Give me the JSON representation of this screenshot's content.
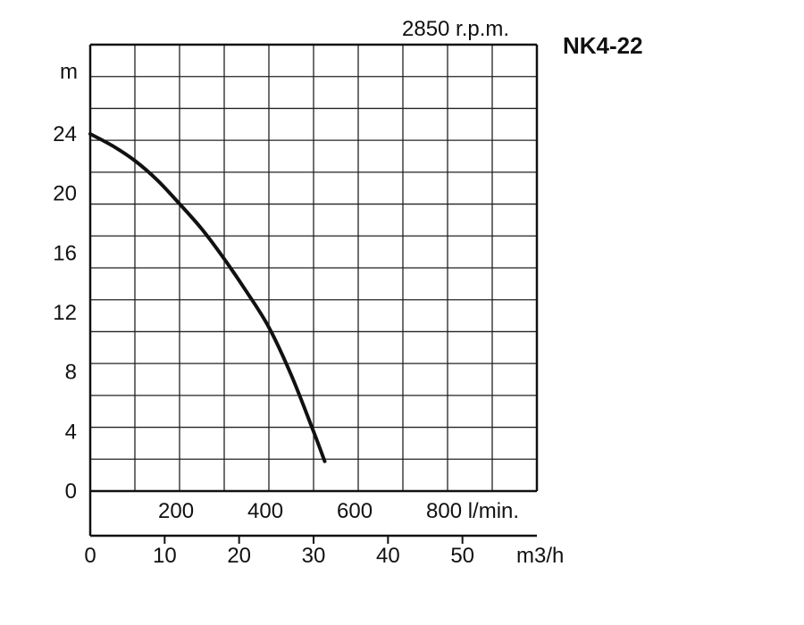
{
  "chart_data": {
    "type": "line",
    "title": "NK4-22",
    "subtitle": "2850 r.p.m.",
    "ylabel": "m",
    "xlabel_primary": "m3/h",
    "xlabel_secondary": "l/min.",
    "ylim": [
      0,
      30
    ],
    "xlim": [
      0,
      60
    ],
    "y_ticks": [
      "0",
      "4",
      "8",
      "12",
      "16",
      "20",
      "24"
    ],
    "x_ticks_m3h": [
      "0",
      "10",
      "20",
      "30",
      "40",
      "50"
    ],
    "x_ticks_lmin": [
      "200",
      "400",
      "600",
      "800 l/min."
    ],
    "grid": true,
    "series": [
      {
        "x": [
          0,
          3,
          6,
          9,
          12,
          15,
          18,
          21,
          24,
          27,
          30,
          31.5
        ],
        "y": [
          24,
          23.2,
          22.2,
          20.9,
          19.3,
          17.6,
          15.6,
          13.4,
          11,
          7.8,
          4,
          2
        ]
      }
    ]
  }
}
